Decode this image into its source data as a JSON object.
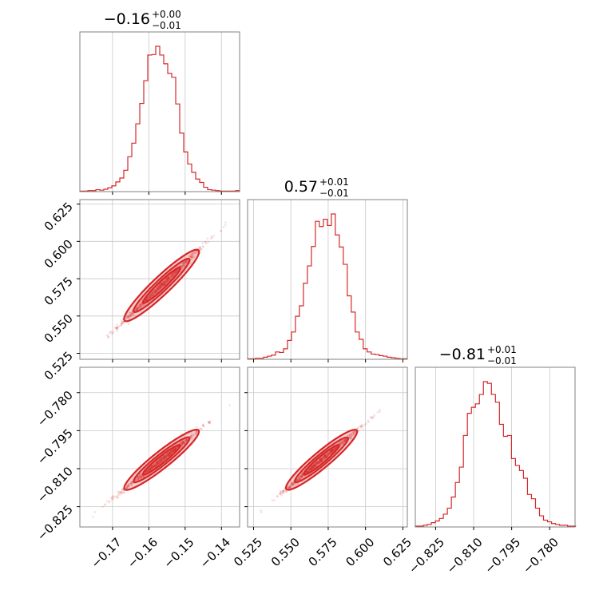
{
  "chart_data": {
    "type": "corner",
    "color": "#d62728",
    "grid": true,
    "parameters": [
      {
        "id": "p0",
        "title": {
          "median": "−0.16",
          "plus": "+0.00",
          "minus": "−0.01"
        },
        "range": [
          -0.179,
          -0.135
        ],
        "ticks": [
          -0.17,
          -0.16,
          -0.15,
          -0.14
        ],
        "tick_labels": [
          "−0.17",
          "−0.16",
          "−0.15",
          "−0.14"
        ],
        "mean": -0.1565,
        "sd": 0.0051,
        "histogram": {
          "start": -0.179,
          "width": 0.0011,
          "counts": [
            1,
            1,
            2,
            2,
            4,
            3,
            5,
            8,
            12,
            20,
            28,
            44,
            72,
            100,
            140,
            182,
            229,
            282,
            283,
            300,
            282,
            264,
            244,
            236,
            181,
            121,
            82,
            57,
            40,
            26,
            19,
            9,
            4,
            3,
            2,
            1,
            1,
            1,
            1,
            2
          ]
        }
      },
      {
        "id": "p1",
        "title": {
          "median": "0.57",
          "plus": "+0.01",
          "minus": "−0.01"
        },
        "range": [
          0.521,
          0.628
        ],
        "ticks": [
          0.525,
          0.55,
          0.575,
          0.6,
          0.625
        ],
        "tick_labels": [
          "0.525",
          "0.550",
          "0.575",
          "0.600",
          "0.625"
        ],
        "mean": 0.5705,
        "sd": 0.0118,
        "histogram": {
          "start": 0.521,
          "width": 0.00267,
          "counts": [
            1,
            1,
            2,
            2,
            4,
            6,
            8,
            14,
            13,
            20,
            36,
            52,
            82,
            102,
            145,
            178,
            215,
            263,
            253,
            267,
            255,
            277,
            237,
            214,
            181,
            121,
            90,
            52,
            38,
            20,
            14,
            10,
            9,
            7,
            6,
            4,
            3,
            2,
            1,
            1
          ]
        }
      },
      {
        "id": "p2",
        "title": {
          "median": "−0.81",
          "plus": "+0.01",
          "minus": "−0.01"
        },
        "range": [
          -0.833,
          -0.77
        ],
        "ticks": [
          -0.825,
          -0.81,
          -0.795,
          -0.78
        ],
        "tick_labels": [
          "−0.825",
          "−0.810",
          "−0.795",
          "−0.780"
        ],
        "mean": -0.8065,
        "sd": 0.0058,
        "histogram": {
          "start": -0.833,
          "width": 0.00158,
          "counts": [
            1,
            1,
            2,
            3,
            5,
            7,
            10,
            15,
            22,
            35,
            52,
            70,
            107,
            133,
            140,
            144,
            155,
            170,
            168,
            155,
            146,
            120,
            106,
            107,
            80,
            72,
            66,
            57,
            38,
            33,
            22,
            13,
            8,
            6,
            4,
            3,
            2,
            2,
            1,
            1
          ]
        }
      }
    ],
    "pairs": [
      {
        "x": "p0",
        "y": "p1"
      },
      {
        "x": "p0",
        "y": "p2"
      },
      {
        "x": "p1",
        "y": "p2"
      }
    ]
  }
}
